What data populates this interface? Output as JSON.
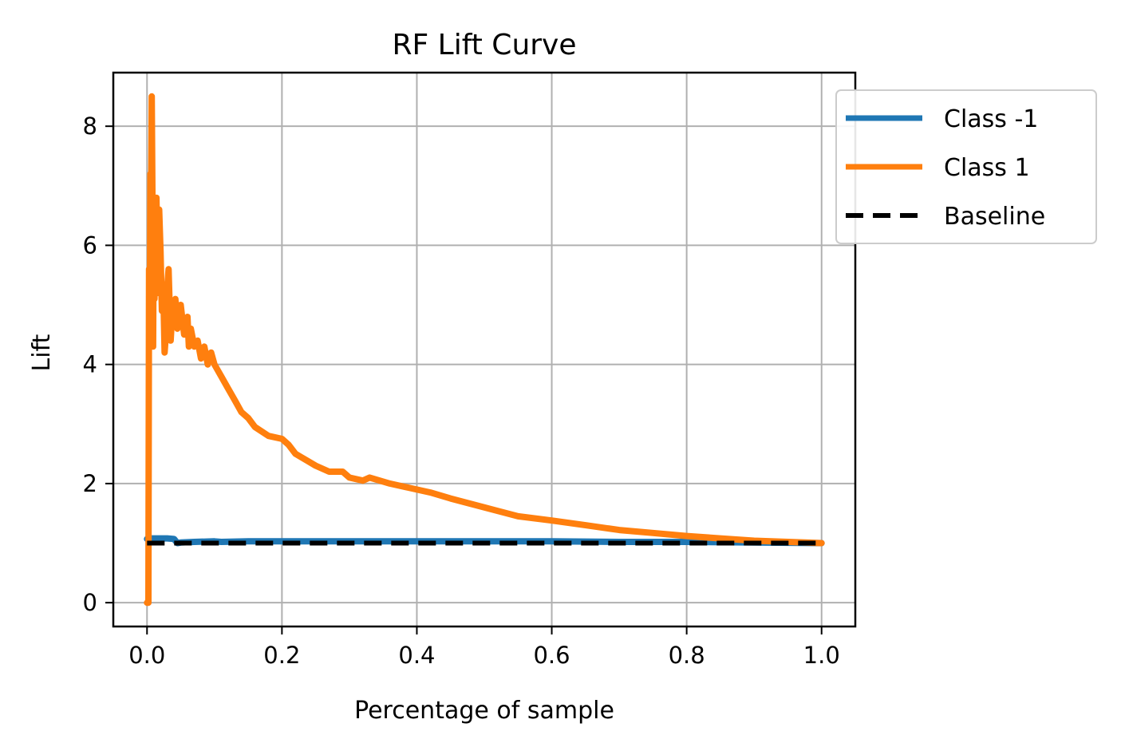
{
  "chart_data": {
    "type": "line",
    "title": "RF Lift Curve",
    "xlabel": "Percentage of sample",
    "ylabel": "Lift",
    "xlim": [
      -0.05,
      1.05
    ],
    "ylim": [
      -0.4,
      8.9
    ],
    "xticks": [
      0.0,
      0.2,
      0.4,
      0.6,
      0.8,
      1.0
    ],
    "xtick_labels": [
      "0.0",
      "0.2",
      "0.4",
      "0.6",
      "0.8",
      "1.0"
    ],
    "yticks": [
      0,
      2,
      4,
      6,
      8
    ],
    "ytick_labels": [
      "0",
      "2",
      "4",
      "6",
      "8"
    ],
    "grid": true,
    "legend_position": "upper-right-outside",
    "series": [
      {
        "name": "Class -1",
        "color": "#1f77b4",
        "style": "solid",
        "x": [
          0.0,
          0.005,
          0.01,
          0.02,
          0.03,
          0.04,
          0.045,
          0.05,
          0.07,
          0.1,
          0.11,
          0.15,
          0.2,
          0.3,
          0.4,
          0.5,
          0.6,
          0.7,
          0.8,
          0.9,
          1.0
        ],
        "y": [
          1.07,
          1.08,
          1.08,
          1.08,
          1.08,
          1.07,
          1.0,
          1.01,
          1.02,
          1.03,
          1.02,
          1.03,
          1.03,
          1.03,
          1.03,
          1.03,
          1.03,
          1.02,
          1.02,
          1.01,
          1.0
        ]
      },
      {
        "name": "Class 1",
        "color": "#ff7f0e",
        "style": "solid",
        "x": [
          0.0,
          0.001,
          0.002,
          0.003,
          0.004,
          0.005,
          0.006,
          0.007,
          0.008,
          0.009,
          0.01,
          0.011,
          0.012,
          0.014,
          0.016,
          0.018,
          0.02,
          0.022,
          0.024,
          0.026,
          0.028,
          0.03,
          0.032,
          0.035,
          0.038,
          0.04,
          0.042,
          0.045,
          0.048,
          0.05,
          0.055,
          0.06,
          0.062,
          0.065,
          0.07,
          0.075,
          0.08,
          0.085,
          0.09,
          0.095,
          0.1,
          0.11,
          0.12,
          0.13,
          0.14,
          0.15,
          0.16,
          0.18,
          0.2,
          0.21,
          0.22,
          0.25,
          0.27,
          0.29,
          0.3,
          0.32,
          0.33,
          0.36,
          0.4,
          0.42,
          0.45,
          0.5,
          0.55,
          0.6,
          0.65,
          0.7,
          0.75,
          0.8,
          0.85,
          0.9,
          0.95,
          1.0
        ],
        "y": [
          0.0,
          0.0,
          0.0,
          5.6,
          4.5,
          7.2,
          6.4,
          8.5,
          6.9,
          4.3,
          6.5,
          5.1,
          6.0,
          6.8,
          5.2,
          6.6,
          5.9,
          4.9,
          5.3,
          4.2,
          4.5,
          5.3,
          5.6,
          4.4,
          5.0,
          4.7,
          5.1,
          4.6,
          4.9,
          5.0,
          4.5,
          4.8,
          4.3,
          4.6,
          4.3,
          4.4,
          4.1,
          4.3,
          4.0,
          4.2,
          4.0,
          3.8,
          3.6,
          3.4,
          3.2,
          3.1,
          2.95,
          2.8,
          2.75,
          2.65,
          2.5,
          2.3,
          2.2,
          2.2,
          2.1,
          2.05,
          2.1,
          2.0,
          1.9,
          1.85,
          1.75,
          1.6,
          1.45,
          1.38,
          1.3,
          1.22,
          1.17,
          1.12,
          1.08,
          1.04,
          1.02,
          1.0
        ]
      },
      {
        "name": "Baseline",
        "color": "#000000",
        "style": "dashed",
        "x": [
          0.0,
          1.0
        ],
        "y": [
          1.0,
          1.0
        ]
      }
    ]
  }
}
